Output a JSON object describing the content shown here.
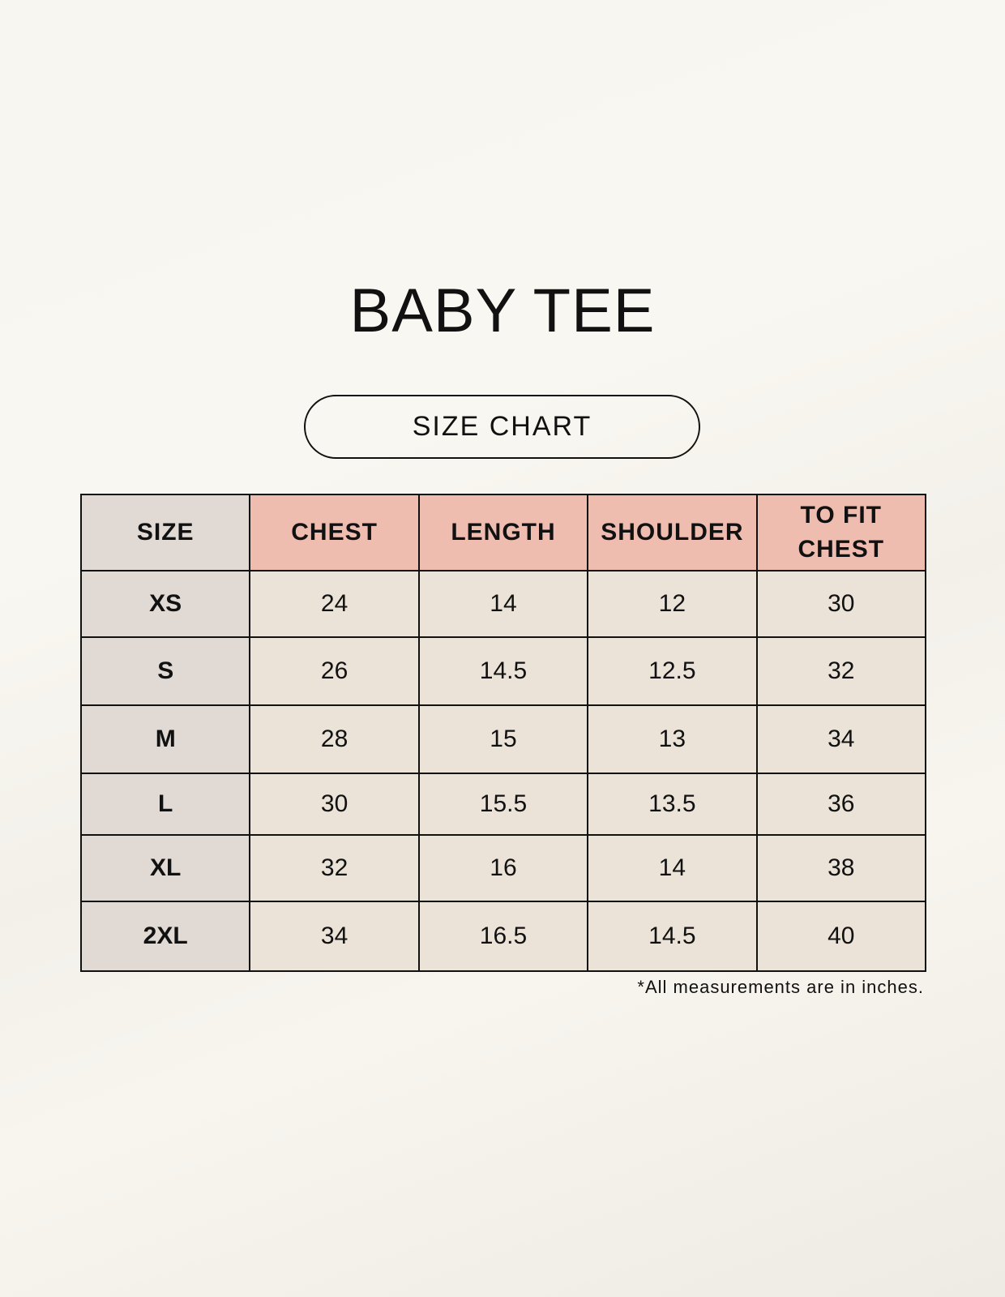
{
  "title": "BABY TEE",
  "subtitle": "SIZE CHART",
  "colors": {
    "header_accent": "#efbdaf",
    "size_column": "#e0d9d4",
    "cell": "#ebe2d8"
  },
  "table": {
    "headers": [
      "SIZE",
      "CHEST",
      "LENGTH",
      "SHOULDER",
      "TO FIT CHEST"
    ],
    "rows": [
      [
        "XS",
        "24",
        "14",
        "12",
        "30"
      ],
      [
        "S",
        "26",
        "14.5",
        "12.5",
        "32"
      ],
      [
        "M",
        "28",
        "15",
        "13",
        "34"
      ],
      [
        "L",
        "30",
        "15.5",
        "13.5",
        "36"
      ],
      [
        "XL",
        "32",
        "16",
        "14",
        "38"
      ],
      [
        "2XL",
        "34",
        "16.5",
        "14.5",
        "40"
      ]
    ]
  },
  "footnote": "*All measurements are in inches."
}
